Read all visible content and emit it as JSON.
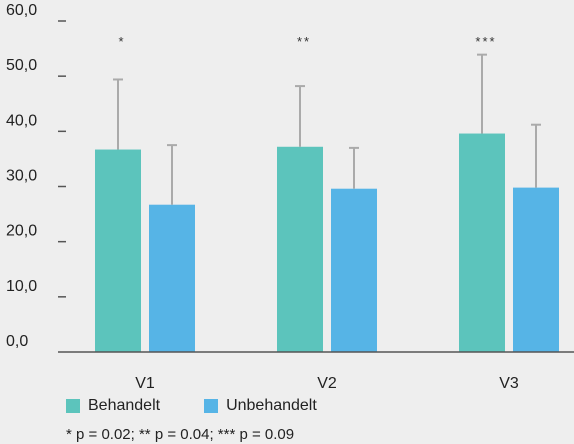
{
  "chart_data": {
    "type": "bar",
    "categories": [
      "V1",
      "V2",
      "V3"
    ],
    "series": [
      {
        "name": "Behandelt",
        "values": [
          36.7,
          37.2,
          39.6
        ],
        "error": [
          12.7,
          11.0,
          14.3
        ],
        "color": "#5cc4bc"
      },
      {
        "name": "Unbehandelt",
        "values": [
          26.7,
          29.6,
          29.8
        ],
        "error": [
          10.8,
          7.4,
          11.4
        ],
        "color": "#56b4e6"
      }
    ],
    "significance_marks": [
      "*",
      "**",
      "***"
    ],
    "y_ticks": [
      "0,0",
      "10,0",
      "20,0",
      "30,0",
      "40,0",
      "50,0",
      "60,0"
    ],
    "ylim": [
      0,
      60
    ],
    "grid": false,
    "legend_position": "bottom-left"
  },
  "footnote": "* p = 0.02; ** p = 0.04; *** p = 0.09"
}
